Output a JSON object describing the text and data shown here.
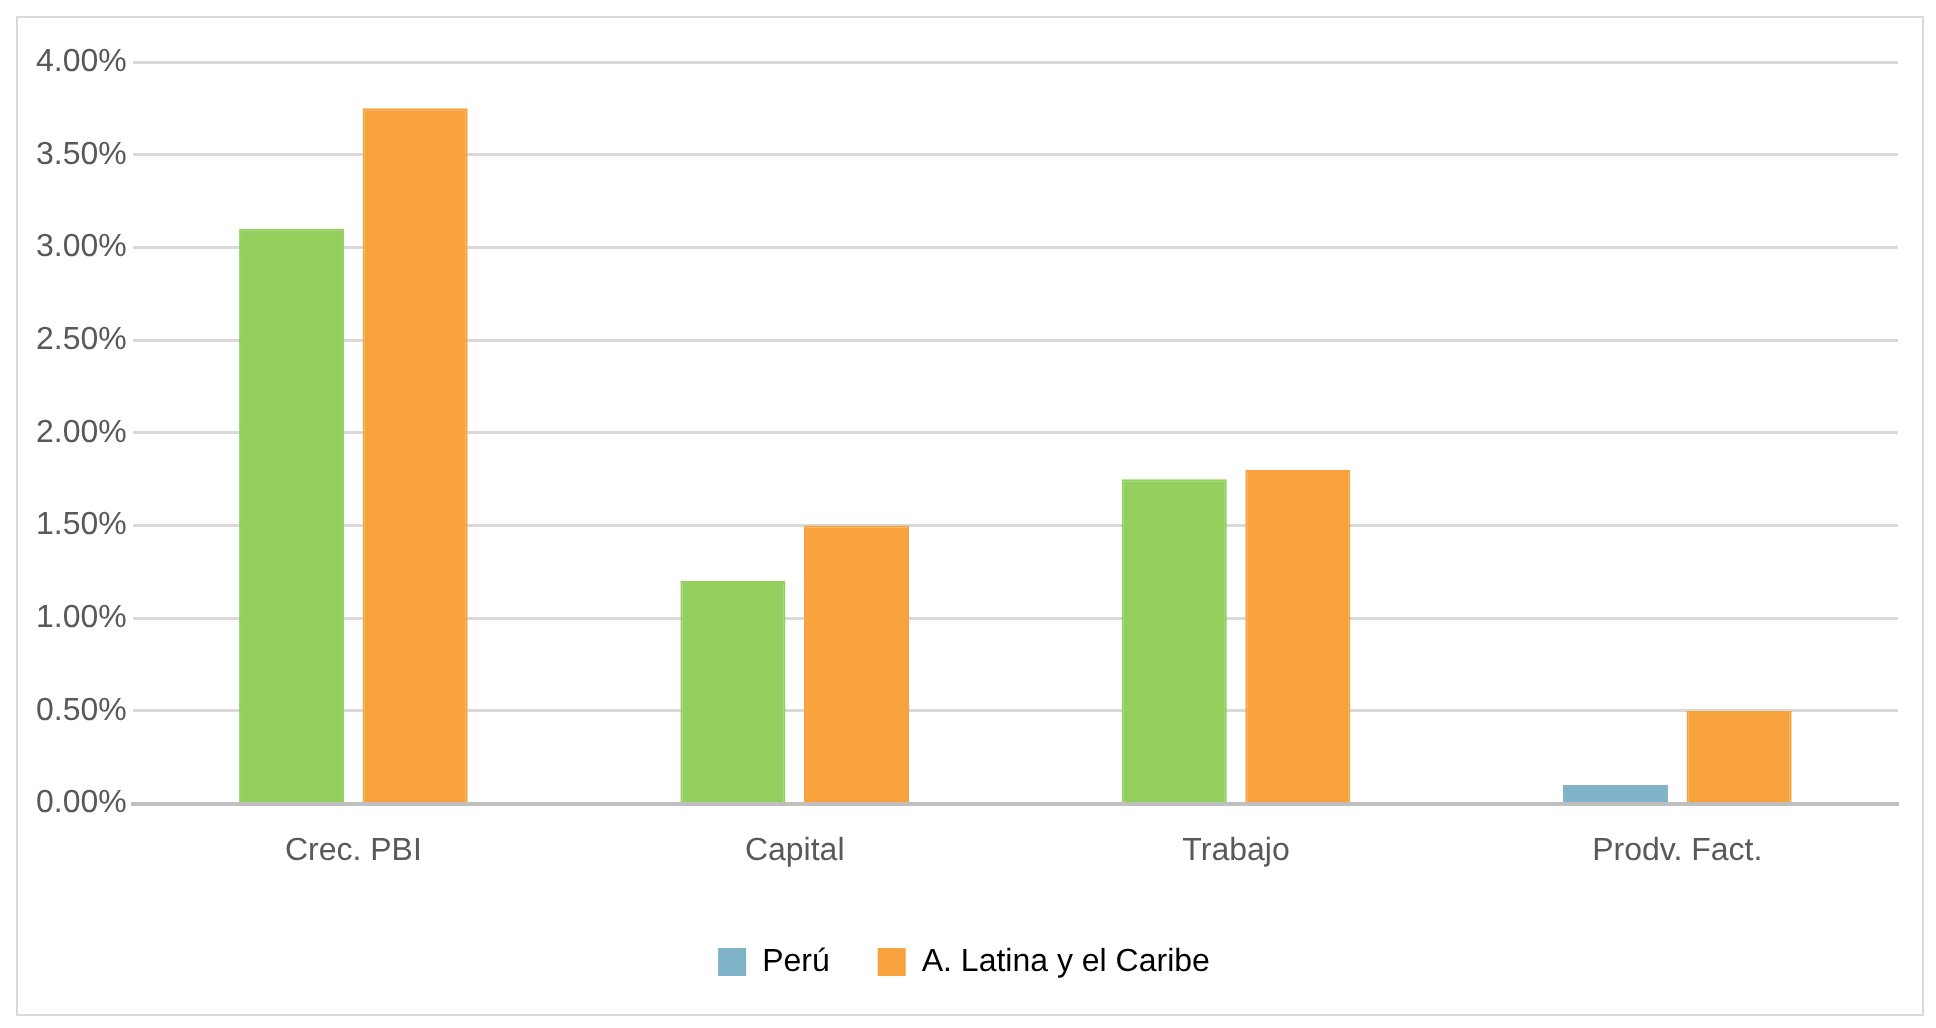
{
  "chart_data": {
    "type": "bar",
    "categories": [
      "Crec. PBI",
      "Capital",
      "Trabajo",
      "Prodv. Fact."
    ],
    "series": [
      {
        "name": "Perú",
        "color": "#7fb3c9",
        "colors": [
          "#92cf5c",
          "#92cf5c",
          "#92cf5c",
          "#7fb3c9"
        ],
        "values": [
          3.1,
          1.2,
          1.75,
          0.1
        ]
      },
      {
        "name": "A. Latina y el Caribe",
        "color": "#f7a23c",
        "values": [
          3.75,
          1.5,
          1.8,
          0.5
        ]
      }
    ],
    "ylim": [
      0,
      4
    ],
    "yticks": [
      {
        "value": 0,
        "label": "0.00%"
      },
      {
        "value": 0.5,
        "label": "0.50%"
      },
      {
        "value": 1,
        "label": "1.00%"
      },
      {
        "value": 1.5,
        "label": "1.50%"
      },
      {
        "value": 2,
        "label": "2.00%"
      },
      {
        "value": 2.5,
        "label": "2.50%"
      },
      {
        "value": 3,
        "label": "3.00%"
      },
      {
        "value": 3.5,
        "label": "3.50%"
      },
      {
        "value": 4,
        "label": "4.00%"
      }
    ],
    "grid": "y",
    "legend": "bottom"
  }
}
